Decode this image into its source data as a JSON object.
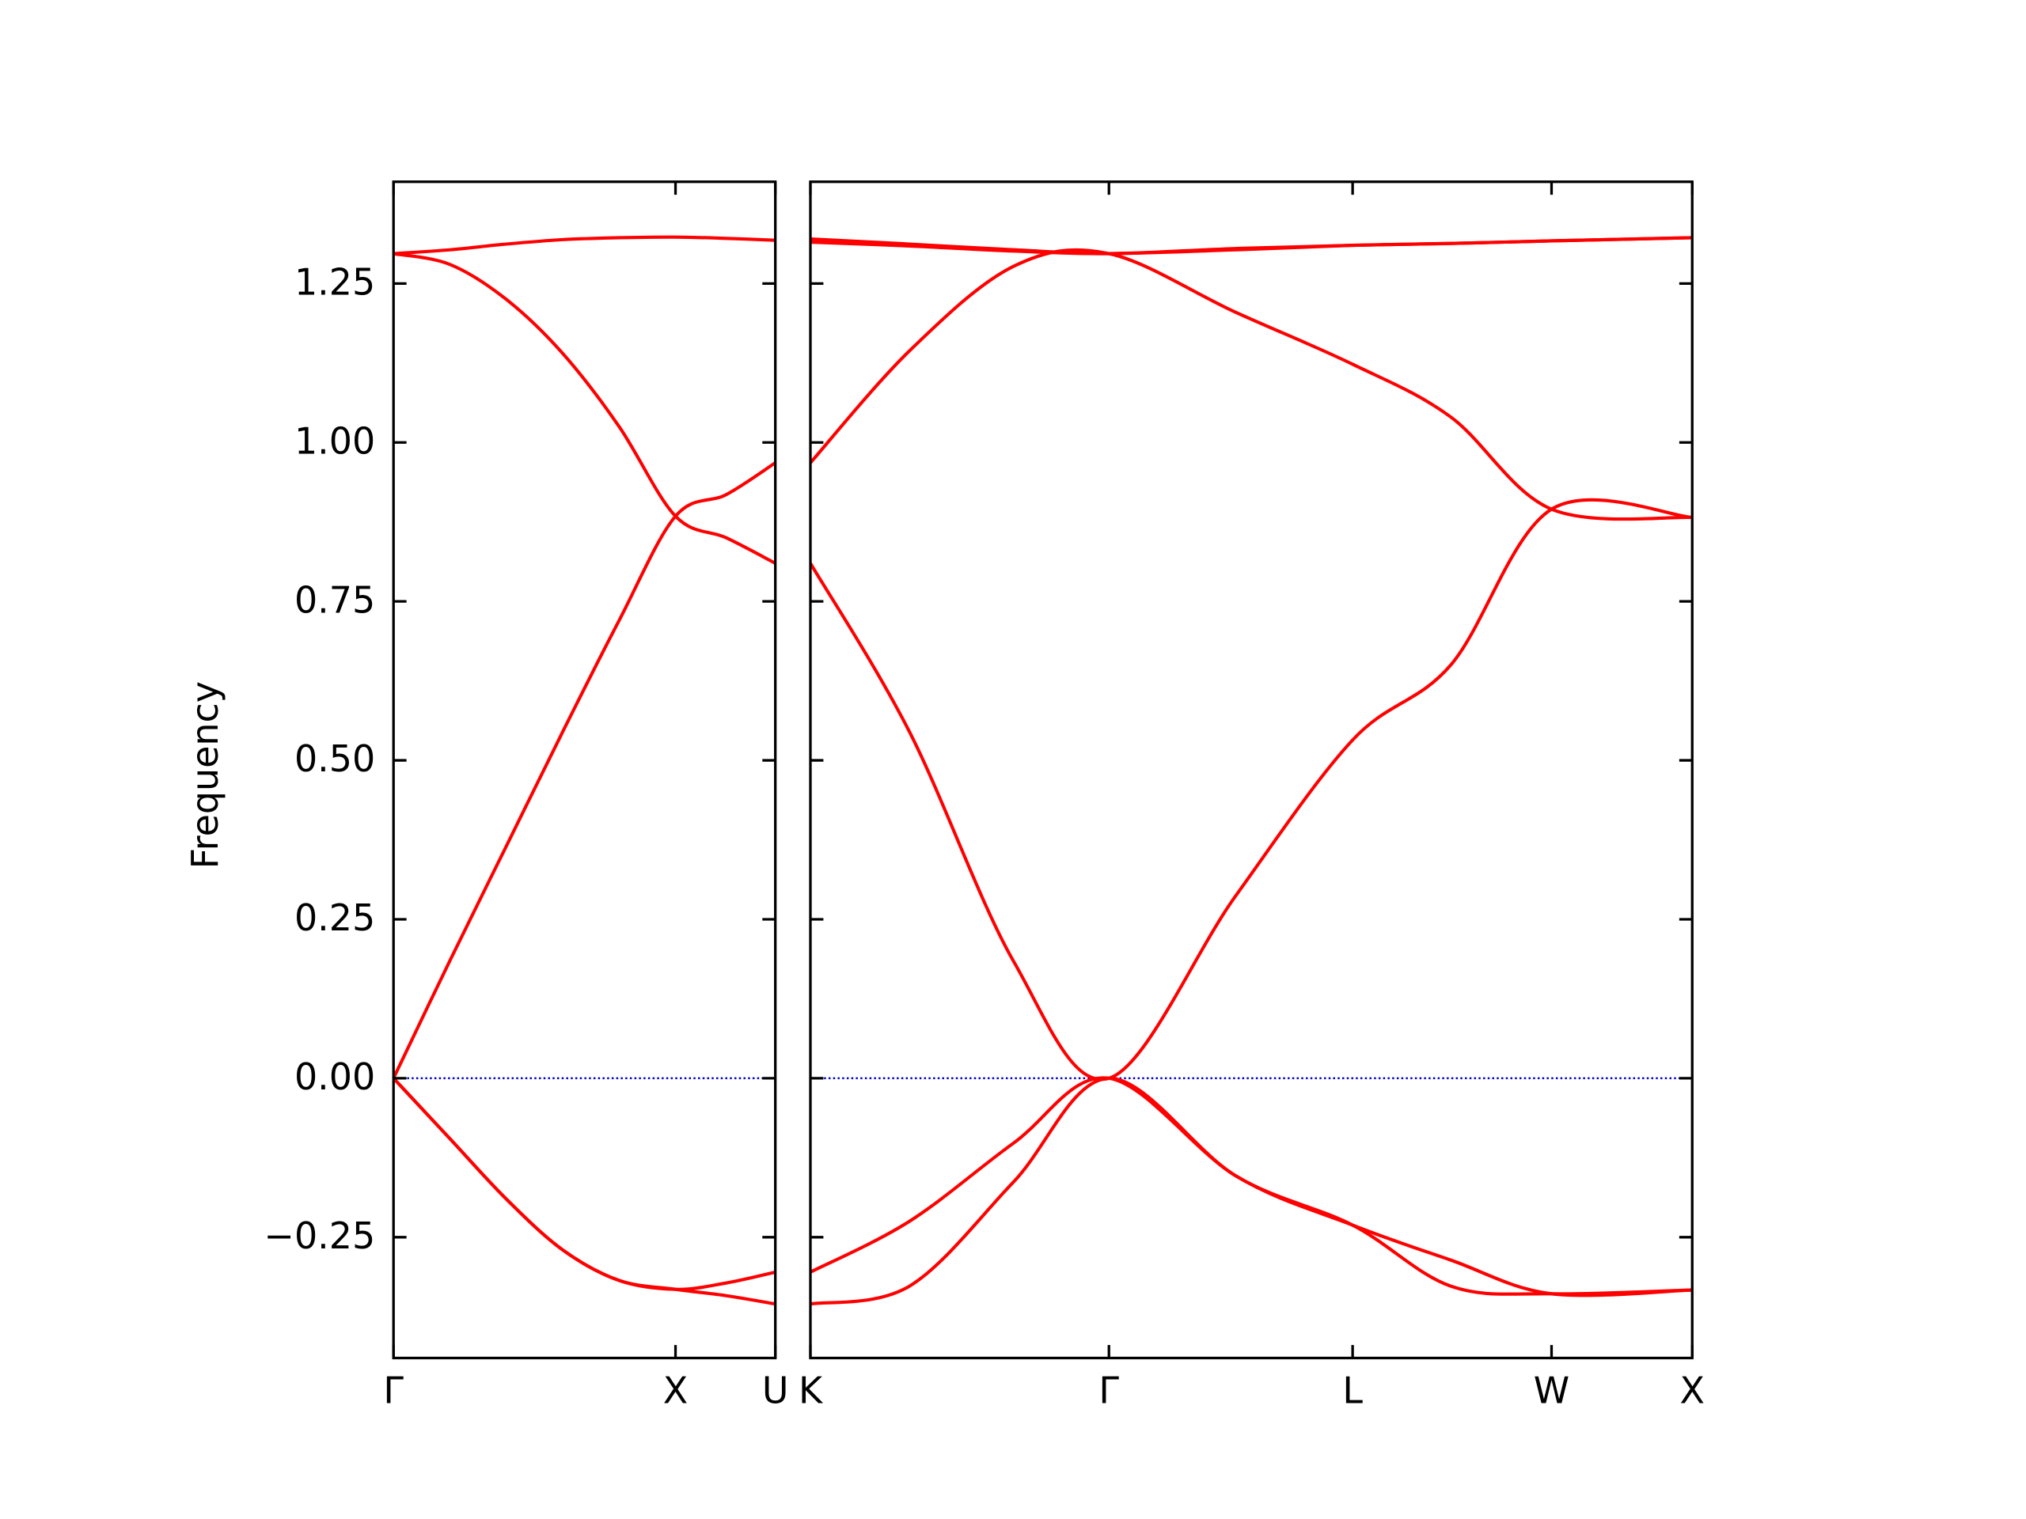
{
  "chart_data": [
    {
      "type": "line",
      "ylabel": "Frequency",
      "xlim": [
        0,
        1.354
      ],
      "ylim": [
        -0.44,
        1.41
      ],
      "xticks": [
        {
          "value": 0,
          "label": "Γ"
        },
        {
          "value": 1,
          "label": "X"
        },
        {
          "value": 1.354,
          "label": "U"
        }
      ],
      "yticks": [
        {
          "value": -0.25,
          "label": "−0.25"
        },
        {
          "value": 0,
          "label": "0.00"
        },
        0.25,
        {
          "value": 0.5,
          "label": "0.50"
        },
        0.75,
        {
          "value": 1,
          "label": "1.00"
        },
        1.25
      ],
      "hline": 0,
      "hline_color": "#0000cc",
      "x": [
        0,
        0.2,
        0.4,
        0.6,
        0.8,
        1,
        1.18,
        1.354
      ],
      "series": [
        {
          "color": "#ff0000",
          "values": [
            1.297,
            1.303,
            1.312,
            1.319,
            1.322,
            1.323,
            1.321,
            1.318
          ]
        },
        {
          "color": "#ff0000",
          "values": [
            1.297,
            1.28,
            1.225,
            1.14,
            1.025,
            0.884,
            0.85,
            0.81
          ]
        },
        {
          "color": "#ff0000",
          "values": [
            0,
            0.185,
            0.365,
            0.545,
            0.72,
            0.884,
            0.918,
            0.968
          ]
        },
        {
          "color": "#ff0000",
          "values": [
            0,
            -0.095,
            -0.19,
            -0.27,
            -0.318,
            -0.332,
            -0.322,
            -0.305
          ]
        },
        {
          "color": "#ff0000",
          "values": [
            0,
            -0.095,
            -0.19,
            -0.27,
            -0.318,
            -0.332,
            -0.342,
            -0.355
          ]
        }
      ]
    },
    {
      "type": "line",
      "xlim": [
        1.354,
        4.488
      ],
      "ylim": [
        -0.44,
        1.41
      ],
      "xticks": [
        {
          "value": 1.354,
          "label": "K"
        },
        {
          "value": 2.415,
          "label": "Γ"
        },
        {
          "value": 3.281,
          "label": "L"
        },
        {
          "value": 3.988,
          "label": "W"
        },
        {
          "value": 4.488,
          "label": "X"
        }
      ],
      "hline": 0,
      "hline_color": "#0000cc",
      "x": [
        1.354,
        1.706,
        2.076,
        2.415,
        2.864,
        3.281,
        3.63,
        3.988,
        4.488
      ],
      "series": [
        {
          "color": "#ff0000",
          "values": [
            1.32,
            1.312,
            1.303,
            1.297,
            1.305,
            1.31,
            1.313,
            1.317,
            1.322
          ]
        },
        {
          "color": "#ff0000",
          "values": [
            1.315,
            1.309,
            1.301,
            1.297,
            1.303,
            1.31,
            1.313,
            1.317,
            1.322
          ]
        },
        {
          "color": "#ff0000",
          "values": [
            0.968,
            1.144,
            1.277,
            1.297,
            1.205,
            1.123,
            1.04,
            0.895,
            0.882
          ]
        },
        {
          "color": "#ff0000",
          "values": [
            0.81,
            0.545,
            0.184,
            0,
            0.286,
            0.532,
            0.65,
            0.895,
            0.882
          ]
        },
        {
          "color": "#ff0000",
          "values": [
            -0.305,
            -0.225,
            -0.102,
            0,
            -0.153,
            -0.231,
            -0.286,
            -0.339,
            -0.333
          ]
        },
        {
          "color": "#ff0000",
          "values": [
            -0.355,
            -0.327,
            -0.163,
            0,
            -0.153,
            -0.231,
            -0.327,
            -0.339,
            -0.333
          ]
        }
      ]
    }
  ]
}
